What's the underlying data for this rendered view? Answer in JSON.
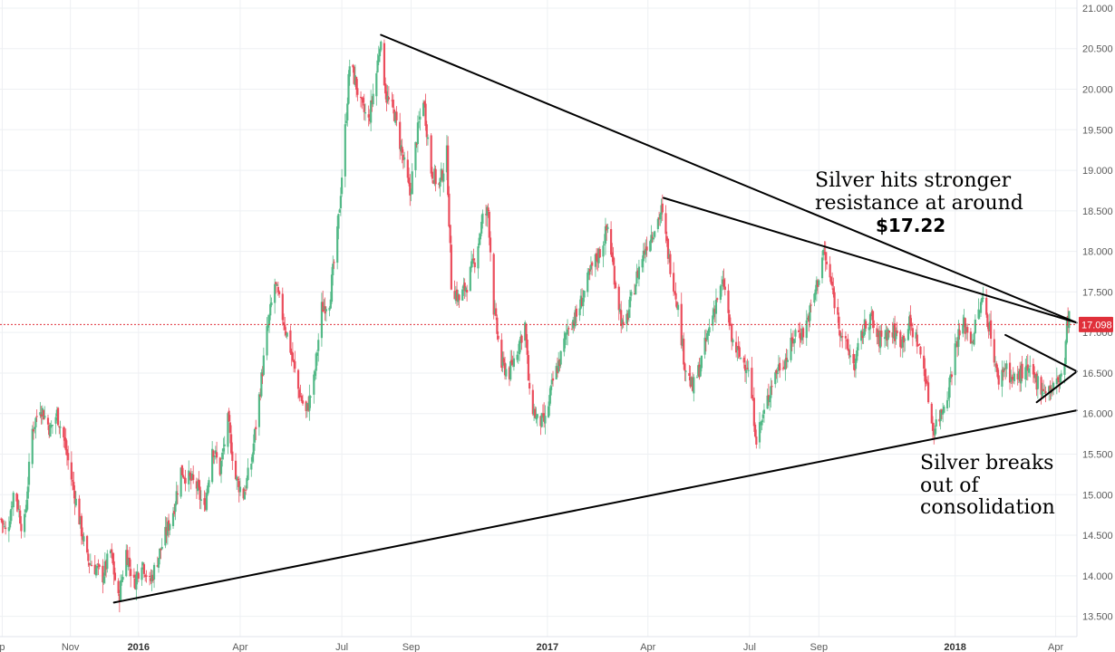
{
  "chart_data": {
    "type": "candlestick",
    "title": "",
    "xlabel": "",
    "ylabel": "",
    "ylim": [
      13.25,
      21.1
    ],
    "xlim": [
      "2015-08-30",
      "2018-04-20"
    ],
    "y_ticks": [
      "13.500",
      "14.000",
      "14.500",
      "15.000",
      "15.500",
      "16.000",
      "16.500",
      "17.000",
      "17.500",
      "18.000",
      "18.500",
      "19.000",
      "19.500",
      "20.000",
      "20.500",
      "21.000"
    ],
    "x_ticks": [
      {
        "label": "p",
        "date": "2015-09-01",
        "bold": false
      },
      {
        "label": "Nov",
        "date": "2015-11-01",
        "bold": false
      },
      {
        "label": "2016",
        "date": "2016-01-01",
        "bold": true
      },
      {
        "label": "Apr",
        "date": "2016-04-01",
        "bold": false
      },
      {
        "label": "Jul",
        "date": "2016-07-01",
        "bold": false
      },
      {
        "label": "Sep",
        "date": "2016-09-01",
        "bold": false
      },
      {
        "label": "2017",
        "date": "2017-01-01",
        "bold": true
      },
      {
        "label": "Apr",
        "date": "2017-04-01",
        "bold": false
      },
      {
        "label": "Jul",
        "date": "2017-07-01",
        "bold": false
      },
      {
        "label": "Sep",
        "date": "2017-09-01",
        "bold": false
      },
      {
        "label": "2018",
        "date": "2018-01-01",
        "bold": true
      },
      {
        "label": "Apr",
        "date": "2018-04-01",
        "bold": false
      }
    ],
    "grid": true,
    "colors": {
      "up": "#53b987",
      "down": "#eb4d5c",
      "grid": "#eef0f3",
      "price_line": "#e0303a",
      "trendline": "#000000"
    },
    "current_price": {
      "value": 17.098,
      "label": "17.098"
    },
    "price_path": [
      [
        "2015-08-31",
        14.7
      ],
      [
        "2015-09-05",
        14.5
      ],
      [
        "2015-09-12",
        15.1
      ],
      [
        "2015-09-20",
        14.5
      ],
      [
        "2015-09-28",
        15.8
      ],
      [
        "2015-10-05",
        16.1
      ],
      [
        "2015-10-14",
        15.8
      ],
      [
        "2015-10-20",
        16.0
      ],
      [
        "2015-10-26",
        15.7
      ],
      [
        "2015-11-02",
        15.2
      ],
      [
        "2015-11-09",
        14.7
      ],
      [
        "2015-11-16",
        14.2
      ],
      [
        "2015-11-23",
        14.1
      ],
      [
        "2015-11-30",
        14.0
      ],
      [
        "2015-12-07",
        14.3
      ],
      [
        "2015-12-14",
        13.7
      ],
      [
        "2015-12-21",
        14.3
      ],
      [
        "2015-12-28",
        13.9
      ],
      [
        "2016-01-04",
        14.2
      ],
      [
        "2016-01-11",
        13.9
      ],
      [
        "2016-01-18",
        14.2
      ],
      [
        "2016-01-25",
        14.5
      ],
      [
        "2016-02-01",
        14.8
      ],
      [
        "2016-02-08",
        15.3
      ],
      [
        "2016-02-15",
        15.2
      ],
      [
        "2016-02-22",
        15.1
      ],
      [
        "2016-02-29",
        14.8
      ],
      [
        "2016-03-07",
        15.6
      ],
      [
        "2016-03-14",
        15.3
      ],
      [
        "2016-03-21",
        15.9
      ],
      [
        "2016-03-28",
        15.2
      ],
      [
        "2016-04-04",
        15.0
      ],
      [
        "2016-04-11",
        15.4
      ],
      [
        "2016-04-18",
        16.2
      ],
      [
        "2016-04-25",
        17.0
      ],
      [
        "2016-05-02",
        17.6
      ],
      [
        "2016-05-09",
        17.2
      ],
      [
        "2016-05-16",
        16.8
      ],
      [
        "2016-05-23",
        16.3
      ],
      [
        "2016-05-30",
        16.0
      ],
      [
        "2016-06-06",
        16.4
      ],
      [
        "2016-06-13",
        17.3
      ],
      [
        "2016-06-20",
        17.4
      ],
      [
        "2016-06-27",
        18.2
      ],
      [
        "2016-07-04",
        19.5
      ],
      [
        "2016-07-08",
        20.3
      ],
      [
        "2016-07-13",
        20.1
      ],
      [
        "2016-07-18",
        19.8
      ],
      [
        "2016-07-25",
        19.6
      ],
      [
        "2016-08-01",
        20.2
      ],
      [
        "2016-08-04",
        20.6
      ],
      [
        "2016-08-10",
        19.9
      ],
      [
        "2016-08-17",
        19.7
      ],
      [
        "2016-08-24",
        19.2
      ],
      [
        "2016-08-31",
        18.7
      ],
      [
        "2016-09-06",
        19.4
      ],
      [
        "2016-09-12",
        19.9
      ],
      [
        "2016-09-19",
        19.0
      ],
      [
        "2016-09-26",
        18.8
      ],
      [
        "2016-10-03",
        19.2
      ],
      [
        "2016-10-07",
        17.6
      ],
      [
        "2016-10-14",
        17.4
      ],
      [
        "2016-10-21",
        17.6
      ],
      [
        "2016-10-28",
        17.9
      ],
      [
        "2016-11-04",
        18.4
      ],
      [
        "2016-11-09",
        18.5
      ],
      [
        "2016-11-14",
        17.3
      ],
      [
        "2016-11-21",
        16.6
      ],
      [
        "2016-11-28",
        16.5
      ],
      [
        "2016-12-05",
        16.8
      ],
      [
        "2016-12-12",
        17.1
      ],
      [
        "2016-12-16",
        16.2
      ],
      [
        "2016-12-23",
        15.9
      ],
      [
        "2016-12-30",
        15.9
      ],
      [
        "2017-01-06",
        16.4
      ],
      [
        "2017-01-13",
        16.7
      ],
      [
        "2017-01-20",
        17.1
      ],
      [
        "2017-01-27",
        17.2
      ],
      [
        "2017-02-03",
        17.5
      ],
      [
        "2017-02-10",
        17.8
      ],
      [
        "2017-02-17",
        18.0
      ],
      [
        "2017-02-24",
        18.3
      ],
      [
        "2017-03-03",
        17.6
      ],
      [
        "2017-03-10",
        17.0
      ],
      [
        "2017-03-17",
        17.4
      ],
      [
        "2017-03-24",
        17.8
      ],
      [
        "2017-03-31",
        18.1
      ],
      [
        "2017-04-07",
        18.3
      ],
      [
        "2017-04-13",
        18.5
      ],
      [
        "2017-04-20",
        17.9
      ],
      [
        "2017-04-27",
        17.4
      ],
      [
        "2017-05-04",
        16.6
      ],
      [
        "2017-05-11",
        16.3
      ],
      [
        "2017-05-18",
        16.6
      ],
      [
        "2017-05-25",
        17.0
      ],
      [
        "2017-06-01",
        17.4
      ],
      [
        "2017-06-08",
        17.6
      ],
      [
        "2017-06-15",
        16.9
      ],
      [
        "2017-06-22",
        16.7
      ],
      [
        "2017-06-29",
        16.6
      ],
      [
        "2017-07-03",
        16.2
      ],
      [
        "2017-07-07",
        15.7
      ],
      [
        "2017-07-14",
        16.0
      ],
      [
        "2017-07-21",
        16.4
      ],
      [
        "2017-07-28",
        16.6
      ],
      [
        "2017-08-04",
        16.7
      ],
      [
        "2017-08-11",
        17.0
      ],
      [
        "2017-08-18",
        17.0
      ],
      [
        "2017-08-25",
        17.3
      ],
      [
        "2017-09-01",
        17.7
      ],
      [
        "2017-09-05",
        18.0
      ],
      [
        "2017-09-12",
        17.6
      ],
      [
        "2017-09-19",
        17.1
      ],
      [
        "2017-09-26",
        16.8
      ],
      [
        "2017-10-03",
        16.6
      ],
      [
        "2017-10-10",
        17.0
      ],
      [
        "2017-10-17",
        17.2
      ],
      [
        "2017-10-24",
        16.9
      ],
      [
        "2017-10-31",
        17.0
      ],
      [
        "2017-11-07",
        17.0
      ],
      [
        "2017-11-14",
        16.9
      ],
      [
        "2017-11-21",
        17.1
      ],
      [
        "2017-11-28",
        16.9
      ],
      [
        "2017-12-05",
        16.5
      ],
      [
        "2017-12-12",
        15.8
      ],
      [
        "2017-12-19",
        16.0
      ],
      [
        "2017-12-26",
        16.3
      ],
      [
        "2018-01-02",
        16.9
      ],
      [
        "2018-01-09",
        17.1
      ],
      [
        "2018-01-16",
        16.9
      ],
      [
        "2018-01-23",
        17.3
      ],
      [
        "2018-01-26",
        17.4
      ],
      [
        "2018-02-02",
        17.0
      ],
      [
        "2018-02-08",
        16.4
      ],
      [
        "2018-02-15",
        16.6
      ],
      [
        "2018-02-22",
        16.4
      ],
      [
        "2018-03-01",
        16.5
      ],
      [
        "2018-03-08",
        16.5
      ],
      [
        "2018-03-15",
        16.4
      ],
      [
        "2018-03-22",
        16.3
      ],
      [
        "2018-03-29",
        16.3
      ],
      [
        "2018-04-03",
        16.4
      ],
      [
        "2018-04-06",
        16.5
      ],
      [
        "2018-04-09",
        16.6
      ],
      [
        "2018-04-11",
        17.1
      ],
      [
        "2018-04-13",
        17.2
      ],
      [
        "2018-04-16",
        17.1
      ]
    ],
    "trendlines": [
      {
        "name": "upper-resistance",
        "from": [
          "2016-08-05",
          20.67
        ],
        "to": [
          "2018-04-20",
          17.12
        ]
      },
      {
        "name": "inner-resistance",
        "from": [
          "2017-04-15",
          18.66
        ],
        "to": [
          "2018-04-20",
          17.12
        ]
      },
      {
        "name": "long-term-support",
        "from": [
          "2015-12-10",
          13.67
        ],
        "to": [
          "2018-04-20",
          16.04
        ]
      },
      {
        "name": "pennant-upper",
        "from": [
          "2018-02-15",
          16.97
        ],
        "to": [
          "2018-04-20",
          16.52
        ]
      },
      {
        "name": "pennant-lower",
        "from": [
          "2018-03-15",
          16.14
        ],
        "to": [
          "2018-04-20",
          16.52
        ]
      }
    ],
    "annotations": [
      {
        "name": "resistance-annotation",
        "lines": [
          "Silver hits stronger",
          "resistance at around"
        ],
        "bold_line": "$17.22"
      },
      {
        "name": "breakout-annotation",
        "lines": [
          "Silver breaks",
          "out of",
          "consolidation"
        ]
      }
    ]
  }
}
